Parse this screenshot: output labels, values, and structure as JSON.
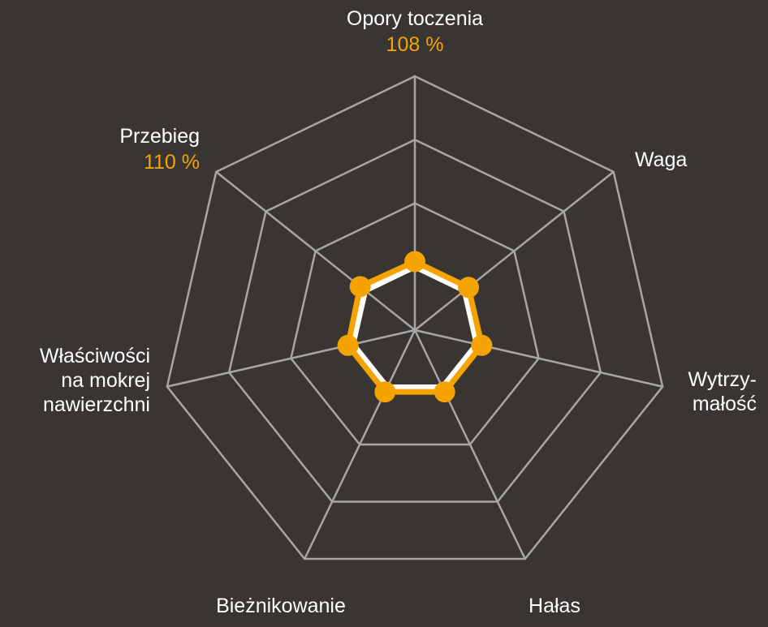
{
  "chart_data": {
    "type": "radar",
    "title": "",
    "axes": [
      {
        "lines": [
          "Opory toczenia"
        ],
        "value_label": "108 %"
      },
      {
        "lines": [
          "Waga"
        ],
        "value_label": ""
      },
      {
        "lines": [
          "Wytrzy-",
          "małość"
        ],
        "value_label": ""
      },
      {
        "lines": [
          "Hałas"
        ],
        "value_label": ""
      },
      {
        "lines": [
          "Bieżnikowanie"
        ],
        "value_label": ""
      },
      {
        "lines": [
          "Właściwości",
          "na mokrej",
          "nawierzchni"
        ],
        "value_label": ""
      },
      {
        "lines": [
          "Przebieg"
        ],
        "value_label": "110 %"
      }
    ],
    "rmax": 4,
    "grid_levels": [
      1,
      2,
      3,
      4
    ],
    "series": [
      {
        "values": [
          1.08,
          1.08,
          1.08,
          1.08,
          1.08,
          1.08,
          1.1
        ],
        "color": "#f5a300",
        "markers": true
      },
      {
        "values": [
          1.0,
          1.0,
          1.0,
          1.0,
          1.0,
          1.0,
          1.0
        ],
        "color": "#ffffff",
        "markers": false
      }
    ]
  },
  "colors": {
    "background": "#383533",
    "grid": "#a6a6a6",
    "accent": "#f5a300",
    "baseline": "#ffffff"
  }
}
